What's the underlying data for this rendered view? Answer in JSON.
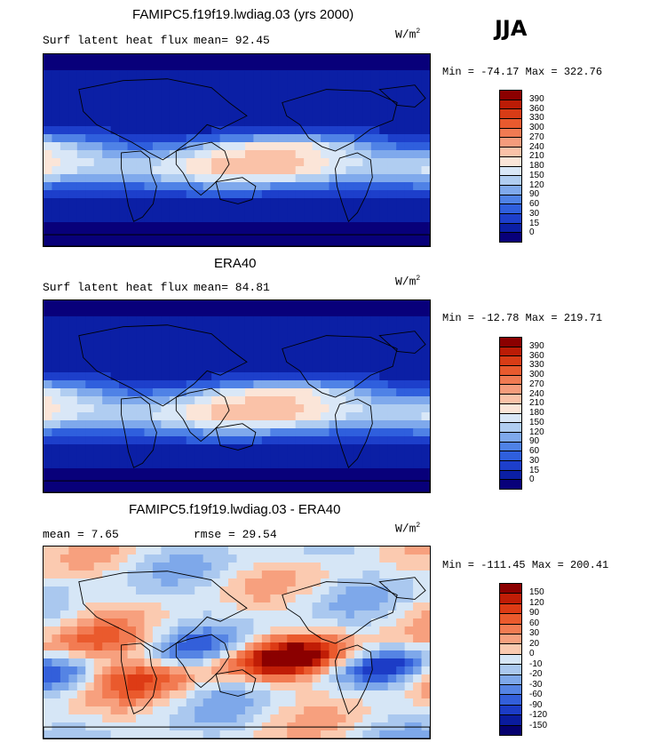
{
  "season": "JJA",
  "panels": [
    {
      "title": "FAMIPC5.f19f19.lwdiag.03 (yrs 2000)",
      "left_label": "Surf latent heat flux",
      "mean_text": "mean=   92.45",
      "unit_base": "W/m",
      "unit_exp": "2",
      "minmax": "Min = -74.17 Max = 322.76",
      "levels": [
        "390",
        "360",
        "330",
        "300",
        "270",
        "240",
        "210",
        "180",
        "150",
        "120",
        "90",
        "60",
        "30",
        "15",
        "0"
      ],
      "colors": [
        "#8b0000",
        "#bb1c06",
        "#d83c16",
        "#e85a2e",
        "#f07a52",
        "#f59c7c",
        "#fac2a8",
        "#fbe5d8",
        "#d9e7f7",
        "#b0cdf1",
        "#7fa9ec",
        "#4f82e6",
        "#2f5fdd",
        "#1d3fcb",
        "#0b1fa5",
        "#08007a"
      ]
    },
    {
      "title": "ERA40",
      "left_label": "Surf latent heat flux",
      "mean_text": "mean=   84.81",
      "unit_base": "W/m",
      "unit_exp": "2",
      "minmax": "Min = -12.78 Max = 219.71",
      "levels": [
        "390",
        "360",
        "330",
        "300",
        "270",
        "240",
        "210",
        "180",
        "150",
        "120",
        "90",
        "60",
        "30",
        "15",
        "0"
      ],
      "colors": [
        "#8b0000",
        "#bb1c06",
        "#d83c16",
        "#e85a2e",
        "#f07a52",
        "#f59c7c",
        "#fac2a8",
        "#fbe5d8",
        "#d9e7f7",
        "#b0cdf1",
        "#7fa9ec",
        "#4f82e6",
        "#2f5fdd",
        "#1d3fcb",
        "#0b1fa5",
        "#08007a"
      ]
    },
    {
      "title": "FAMIPC5.f19f19.lwdiag.03 - ERA40",
      "left_label": "mean =    7.65",
      "mean_text": "rmse =   29.54",
      "unit_base": "W/m",
      "unit_exp": "2",
      "minmax": "Min = -111.45 Max = 200.41",
      "levels": [
        "150",
        "120",
        "90",
        "60",
        "30",
        "20",
        "0",
        "-10",
        "-20",
        "-30",
        "-60",
        "-90",
        "-120",
        "-150"
      ],
      "colors": [
        "#8b0000",
        "#c01d06",
        "#dd3b15",
        "#ea5a2d",
        "#f27b52",
        "#f7a07e",
        "#fbcab0",
        "#d6e6f6",
        "#aac8ef",
        "#7ea8ea",
        "#5584e4",
        "#335fda",
        "#1c3cc6",
        "#0a1b9e",
        "#05006e"
      ]
    }
  ]
}
